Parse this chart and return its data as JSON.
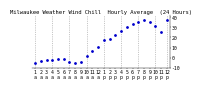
{
  "title": "Milwaukee Weather Wind Chill  Hourly Average  (24 Hours)",
  "hours": [
    0,
    1,
    2,
    3,
    4,
    5,
    6,
    7,
    8,
    9,
    10,
    11,
    12,
    13,
    14,
    15,
    16,
    17,
    18,
    19,
    20,
    21,
    22,
    23
  ],
  "hour_labels": [
    "1",
    "2",
    "3",
    "4",
    "5",
    "6",
    "7",
    "8",
    "9",
    "10",
    "11",
    "12",
    "1",
    "2",
    "3",
    "4",
    "5",
    "6",
    "7",
    "8",
    "9",
    "10",
    "11",
    "12"
  ],
  "hour_sublabels": [
    "a",
    "a",
    "a",
    "a",
    "a",
    "a",
    "a",
    "a",
    "a",
    "a",
    "a",
    "a",
    "p",
    "p",
    "p",
    "p",
    "p",
    "p",
    "p",
    "p",
    "p",
    "p",
    "p",
    "p"
  ],
  "wind_chill": [
    -5,
    -3,
    -2,
    -2,
    -1,
    -1,
    -4,
    -5,
    -4,
    2,
    7,
    11,
    17,
    18,
    22,
    26,
    30,
    33,
    35,
    37,
    35,
    31,
    25,
    37
  ],
  "grid_positions": [
    0,
    3,
    6,
    9,
    12,
    15,
    18,
    21,
    23
  ],
  "dot_color": "#0000cc",
  "grid_color": "#999999",
  "bg_color": "#ffffff",
  "ylim_min": -10,
  "ylim_max": 42,
  "title_fontsize": 4.0,
  "tick_fontsize": 3.5,
  "yticks": [
    40,
    30,
    20,
    10,
    0,
    -10
  ]
}
